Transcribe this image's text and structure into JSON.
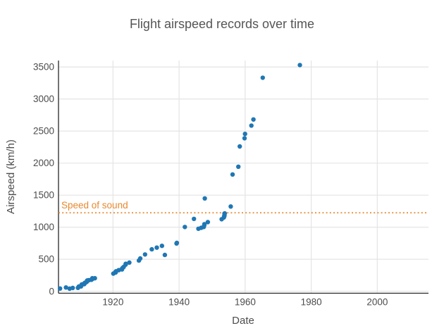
{
  "chart_data": {
    "type": "scatter",
    "title": "Flight airspeed records over time",
    "xlabel": "Date",
    "ylabel": "Airspeed (km/h)",
    "x_ticks": [
      1920,
      1940,
      1960,
      1980,
      2000
    ],
    "y_ticks": [
      0,
      500,
      1000,
      1500,
      2000,
      2500,
      3000,
      3500
    ],
    "xlim": [
      1903.5,
      2015.5
    ],
    "ylim": [
      -30,
      3600
    ],
    "grid": true,
    "legend_position": "none",
    "marker_color": "#1f77b4",
    "grid_color": "#e4e4e4",
    "spine_color": "#262626",
    "annotation": {
      "label": "Speed of sound",
      "value": 1225,
      "color": "#e8882d",
      "line_style": "dotted"
    },
    "points": [
      [
        1903.96,
        43.5
      ],
      [
        1905.76,
        60.2
      ],
      [
        1906.87,
        41.3
      ],
      [
        1907.82,
        52.7
      ],
      [
        1909.38,
        54.8
      ],
      [
        1909.64,
        69.8
      ],
      [
        1909.66,
        74.3
      ],
      [
        1910.31,
        76.0
      ],
      [
        1910.52,
        106.5
      ],
      [
        1910.83,
        109.8
      ],
      [
        1911.28,
        111.8
      ],
      [
        1911.36,
        119.8
      ],
      [
        1911.44,
        125.0
      ],
      [
        1911.46,
        125.9
      ],
      [
        1911.47,
        130.1
      ],
      [
        1911.5,
        133.1
      ],
      [
        1912.04,
        145.2
      ],
      [
        1912.15,
        161.3
      ],
      [
        1912.17,
        162.5
      ],
      [
        1912.18,
        166.8
      ],
      [
        1912.19,
        167.9
      ],
      [
        1912.53,
        170.8
      ],
      [
        1912.69,
        174.1
      ],
      [
        1913.46,
        179.8
      ],
      [
        1913.74,
        191.9
      ],
      [
        1913.75,
        203.9
      ],
      [
        1914.51,
        204.2
      ],
      [
        1920.1,
        275.9
      ],
      [
        1920.77,
        292.7
      ],
      [
        1920.78,
        296.7
      ],
      [
        1920.8,
        302.5
      ],
      [
        1920.84,
        309.0
      ],
      [
        1920.95,
        313.0
      ],
      [
        1921.74,
        330.3
      ],
      [
        1922.72,
        341.0
      ],
      [
        1922.78,
        358.8
      ],
      [
        1923.12,
        375.0
      ],
      [
        1923.24,
        380.8
      ],
      [
        1923.84,
        417.1
      ],
      [
        1923.85,
        429.0
      ],
      [
        1924.94,
        448.2
      ],
      [
        1927.84,
        479.3
      ],
      [
        1928.24,
        512.8
      ],
      [
        1929.7,
        575.7
      ],
      [
        1931.74,
        655.8
      ],
      [
        1933.27,
        682.1
      ],
      [
        1934.81,
        709.2
      ],
      [
        1935.7,
        567.1
      ],
      [
        1939.24,
        746.6
      ],
      [
        1939.32,
        755.1
      ],
      [
        1941.75,
        1004.0
      ],
      [
        1944.51,
        1130.0
      ],
      [
        1945.85,
        975.7
      ],
      [
        1946.68,
        990.8
      ],
      [
        1947.46,
        1003.6
      ],
      [
        1947.63,
        1031.0
      ],
      [
        1947.65,
        1047.3
      ],
      [
        1947.79,
        1450.0
      ],
      [
        1948.7,
        1079.8
      ],
      [
        1952.88,
        1124.1
      ],
      [
        1953.54,
        1151.9
      ],
      [
        1953.68,
        1171.0
      ],
      [
        1953.73,
        1184.0
      ],
      [
        1953.75,
        1211.7
      ],
      [
        1953.82,
        1215.3
      ],
      [
        1955.63,
        1323.3
      ],
      [
        1956.19,
        1822.4
      ],
      [
        1957.95,
        1943.5
      ],
      [
        1958.37,
        2259.5
      ],
      [
        1959.83,
        2387.5
      ],
      [
        1959.96,
        2455.7
      ],
      [
        1961.89,
        2585.4
      ],
      [
        1962.51,
        2681.0
      ],
      [
        1965.33,
        3331.5
      ],
      [
        1976.57,
        3529.6
      ]
    ]
  }
}
